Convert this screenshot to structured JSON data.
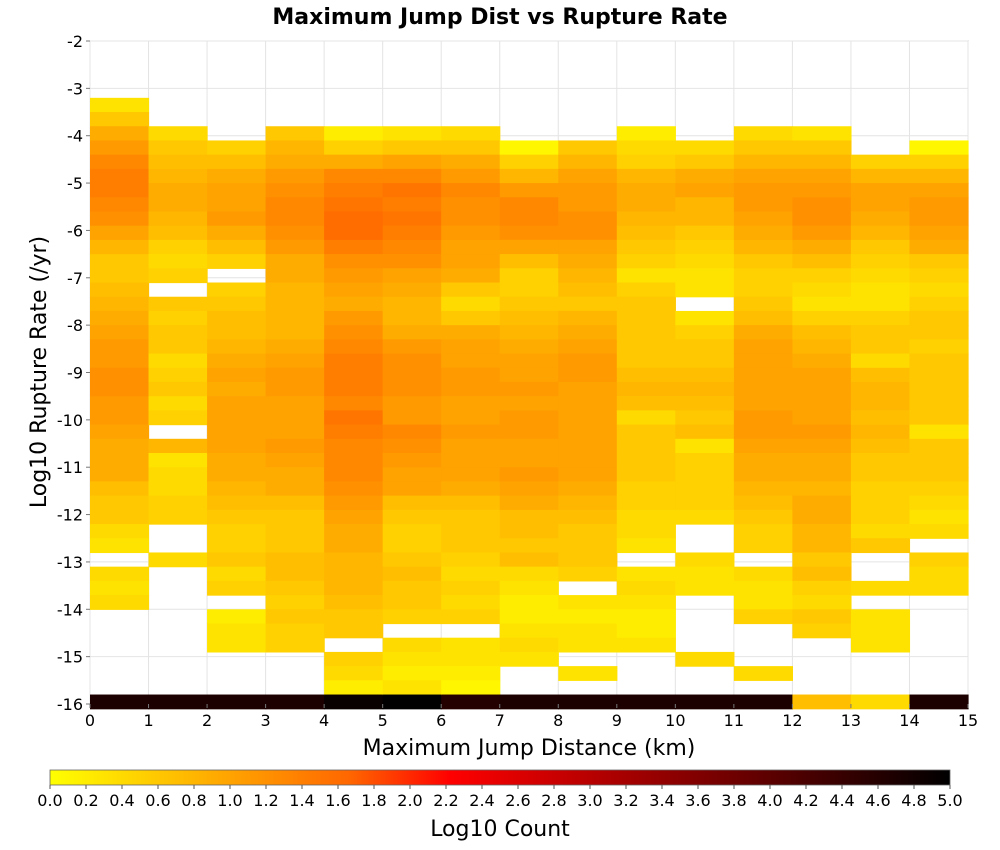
{
  "chart_data": {
    "type": "heatmap",
    "title": "Maximum Jump Dist vs Rupture Rate",
    "xlabel": "Maximum Jump Distance (km)",
    "ylabel": "Log10 Rupture Rate (/yr)",
    "colorbar_label": "Log10 Count",
    "xlim": [
      0,
      15
    ],
    "ylim": [
      -16,
      -2
    ],
    "x_ticks": [
      "0",
      "1",
      "2",
      "3",
      "4",
      "5",
      "6",
      "7",
      "8",
      "9",
      "10",
      "11",
      "12",
      "13",
      "14",
      "15"
    ],
    "y_ticks": [
      "-2",
      "-3",
      "-4",
      "-5",
      "-6",
      "-7",
      "-8",
      "-9",
      "-10",
      "-11",
      "-12",
      "-13",
      "-14",
      "-15",
      "-16"
    ],
    "colorbar_range": [
      0,
      5
    ],
    "colorbar_ticks": [
      "0.0",
      "0.2",
      "0.4",
      "0.6",
      "0.8",
      "1.0",
      "1.2",
      "1.4",
      "1.6",
      "1.8",
      "2.0",
      "2.2",
      "2.4",
      "2.6",
      "2.8",
      "3.0",
      "3.2",
      "3.4",
      "3.6",
      "3.8",
      "4.0",
      "4.2",
      "4.4",
      "4.6",
      "4.8",
      "5.0"
    ],
    "colormap": [
      "#ffff00",
      "#ffcc00",
      "#ff9900",
      "#ff6600",
      "#ff0000",
      "#cc0000",
      "#990000",
      "#660000",
      "#330000",
      "#000000"
    ],
    "grid": true,
    "x_bin_width": 1,
    "y_bin_height": 0.3,
    "row_centers": [
      -3.35,
      -3.65,
      -3.95,
      -4.25,
      -4.55,
      -4.85,
      -5.15,
      -5.45,
      -5.75,
      -6.05,
      -6.35,
      -6.65,
      -6.95,
      -7.25,
      -7.55,
      -7.85,
      -8.15,
      -8.45,
      -8.75,
      -9.05,
      -9.35,
      -9.65,
      -9.95,
      -10.25,
      -10.55,
      -10.85,
      -11.15,
      -11.45,
      -11.75,
      -12.05,
      -12.35,
      -12.65,
      -12.95,
      -13.25,
      -13.55,
      -13.85,
      -14.15,
      -14.45,
      -14.75,
      -15.05,
      -15.35,
      -15.65,
      -15.95
    ],
    "columns": [
      {
        "x": 0.5,
        "top": -3.2,
        "values": [
          0.3,
          0.6,
          0.9,
          1.1,
          1.3,
          1.4,
          1.4,
          1.3,
          1.2,
          1.0,
          0.8,
          0.6,
          0.6,
          0.7,
          0.8,
          0.9,
          1.0,
          1.1,
          1.1,
          1.2,
          1.2,
          1.1,
          1.1,
          1.0,
          0.9,
          0.9,
          0.9,
          0.7,
          0.6,
          0.6,
          0.4,
          0.3,
          null,
          0.4,
          0.3,
          0.4,
          null,
          null,
          null,
          null,
          null,
          null,
          4.7
        ]
      },
      {
        "x": 1.5,
        "top": -3.8,
        "values": [
          null,
          null,
          0.4,
          0.6,
          0.7,
          0.8,
          0.9,
          0.9,
          0.8,
          0.7,
          0.5,
          0.4,
          0.5,
          null,
          0.6,
          0.5,
          0.6,
          0.6,
          0.4,
          0.5,
          0.6,
          0.4,
          0.5,
          null,
          0.8,
          0.3,
          0.4,
          0.4,
          0.5,
          0.5,
          null,
          null,
          0.4,
          null,
          null,
          null,
          null,
          null,
          null,
          null,
          null,
          null,
          4.7
        ]
      },
      {
        "x": 2.5,
        "top": -4.1,
        "values": [
          null,
          null,
          null,
          0.5,
          0.7,
          0.9,
          1.0,
          1.0,
          1.1,
          0.9,
          0.7,
          0.5,
          null,
          0.5,
          0.6,
          0.7,
          0.7,
          0.8,
          0.9,
          1.0,
          0.9,
          1.0,
          1.0,
          1.0,
          1.0,
          0.9,
          0.9,
          0.8,
          0.7,
          0.6,
          0.5,
          0.5,
          0.6,
          0.4,
          0.5,
          null,
          0.2,
          0.3,
          0.3,
          null,
          null,
          null,
          4.7
        ]
      },
      {
        "x": 3.5,
        "top": -3.8,
        "values": [
          null,
          null,
          0.6,
          0.8,
          0.9,
          1.1,
          1.2,
          1.3,
          1.3,
          1.2,
          1.1,
          0.9,
          0.9,
          0.8,
          0.8,
          0.8,
          0.8,
          0.9,
          1.0,
          1.1,
          1.1,
          1.0,
          1.0,
          1.0,
          1.1,
          1.0,
          0.9,
          0.9,
          0.7,
          0.6,
          0.6,
          0.6,
          0.7,
          0.7,
          0.6,
          0.5,
          0.6,
          0.5,
          0.5,
          null,
          null,
          null,
          4.7
        ]
      },
      {
        "x": 4.5,
        "top": -3.8,
        "values": [
          null,
          null,
          0.2,
          0.5,
          0.9,
          1.3,
          1.4,
          1.5,
          1.6,
          1.6,
          1.4,
          1.2,
          1.1,
          1.0,
          0.9,
          1.1,
          1.2,
          1.3,
          1.4,
          1.4,
          1.4,
          1.3,
          1.5,
          1.4,
          1.3,
          1.3,
          1.3,
          1.2,
          1.1,
          1.0,
          0.9,
          0.9,
          0.8,
          0.8,
          0.8,
          0.7,
          0.6,
          0.6,
          null,
          0.5,
          0.4,
          0.2,
          4.9
        ]
      },
      {
        "x": 5.5,
        "top": -3.8,
        "values": [
          null,
          null,
          0.3,
          0.6,
          1.0,
          1.3,
          1.5,
          1.4,
          1.5,
          1.4,
          1.3,
          1.2,
          1.0,
          0.9,
          0.8,
          0.8,
          0.9,
          1.1,
          1.2,
          1.2,
          1.2,
          1.1,
          1.1,
          1.3,
          1.2,
          1.1,
          1.0,
          1.0,
          0.7,
          0.6,
          0.5,
          0.5,
          0.6,
          0.7,
          0.6,
          0.6,
          0.5,
          null,
          0.4,
          0.3,
          0.2,
          0.3,
          5.0
        ]
      },
      {
        "x": 6.5,
        "top": -3.8,
        "values": [
          null,
          null,
          0.4,
          0.6,
          0.9,
          1.1,
          1.3,
          1.2,
          1.2,
          1.1,
          1.0,
          1.0,
          0.9,
          0.6,
          0.4,
          0.6,
          0.9,
          1.0,
          1.0,
          1.1,
          1.1,
          1.0,
          1.0,
          1.1,
          1.0,
          1.0,
          1.0,
          0.9,
          0.7,
          0.6,
          0.6,
          0.6,
          0.5,
          0.4,
          0.5,
          0.4,
          0.5,
          null,
          0.3,
          0.3,
          0.2,
          0.1,
          4.6
        ]
      },
      {
        "x": 7.5,
        "top": -4.1,
        "values": [
          null,
          null,
          null,
          0.1,
          0.5,
          0.8,
          1.1,
          1.3,
          1.3,
          1.2,
          1.0,
          0.7,
          0.5,
          0.5,
          0.6,
          0.7,
          0.8,
          0.9,
          1.0,
          1.0,
          1.1,
          1.0,
          1.1,
          1.1,
          1.0,
          1.0,
          1.1,
          1.0,
          0.9,
          0.7,
          0.7,
          0.6,
          0.7,
          0.4,
          0.3,
          0.2,
          0.2,
          0.3,
          0.4,
          0.3,
          null,
          null,
          4.7
        ]
      },
      {
        "x": 8.5,
        "top": -4.1,
        "values": [
          null,
          null,
          null,
          0.6,
          0.8,
          1.0,
          1.1,
          1.1,
          1.2,
          1.2,
          1.0,
          0.9,
          0.8,
          0.7,
          0.6,
          0.8,
          0.9,
          1.0,
          1.1,
          1.1,
          1.0,
          1.0,
          1.0,
          1.0,
          1.0,
          1.0,
          1.0,
          0.9,
          0.8,
          0.7,
          0.6,
          0.6,
          0.6,
          0.5,
          null,
          0.3,
          0.2,
          0.3,
          0.3,
          null,
          0.3,
          null,
          4.7
        ]
      },
      {
        "x": 9.5,
        "top": -3.8,
        "values": [
          null,
          null,
          0.2,
          0.4,
          0.5,
          0.8,
          0.9,
          0.9,
          0.8,
          0.7,
          0.6,
          0.5,
          0.3,
          0.5,
          0.6,
          0.6,
          0.6,
          0.6,
          0.6,
          0.7,
          0.8,
          0.7,
          0.4,
          0.6,
          0.6,
          0.6,
          0.6,
          0.5,
          0.5,
          0.4,
          0.4,
          0.3,
          null,
          0.3,
          0.4,
          0.3,
          0.2,
          0.2,
          0.3,
          null,
          null,
          null,
          4.7
        ]
      },
      {
        "x": 10.5,
        "top": -4.1,
        "values": [
          null,
          null,
          null,
          0.4,
          0.6,
          0.9,
          1.0,
          0.8,
          0.8,
          0.6,
          0.5,
          0.4,
          0.3,
          0.3,
          null,
          0.3,
          0.5,
          0.6,
          0.6,
          0.7,
          0.8,
          0.7,
          0.6,
          0.7,
          0.3,
          0.5,
          0.5,
          0.5,
          0.5,
          0.4,
          null,
          null,
          0.4,
          0.3,
          0.3,
          null,
          null,
          null,
          null,
          0.4,
          null,
          null,
          4.7
        ]
      },
      {
        "x": 11.5,
        "top": -3.8,
        "values": [
          null,
          null,
          0.4,
          0.6,
          0.8,
          1.0,
          1.1,
          1.1,
          1.0,
          0.9,
          0.8,
          0.6,
          0.5,
          0.5,
          0.6,
          0.7,
          0.9,
          1.0,
          1.0,
          1.0,
          1.0,
          1.0,
          1.1,
          1.1,
          1.0,
          0.9,
          0.9,
          0.8,
          0.7,
          0.6,
          0.5,
          0.5,
          null,
          0.4,
          0.3,
          0.3,
          0.5,
          null,
          null,
          null,
          0.4,
          null,
          4.7
        ]
      },
      {
        "x": 12.5,
        "top": -3.8,
        "values": [
          null,
          null,
          0.3,
          0.6,
          0.8,
          1.0,
          1.1,
          1.2,
          1.2,
          1.1,
          0.9,
          0.7,
          0.5,
          0.4,
          0.3,
          0.5,
          0.7,
          0.8,
          0.9,
          1.0,
          1.0,
          1.0,
          1.0,
          1.1,
          1.0,
          0.9,
          0.9,
          0.8,
          0.9,
          0.9,
          0.8,
          0.8,
          0.6,
          0.7,
          0.5,
          0.4,
          0.6,
          0.5,
          null,
          null,
          null,
          null,
          0.7
        ]
      },
      {
        "x": 13.5,
        "top": -4.4,
        "values": [
          null,
          null,
          null,
          null,
          0.5,
          0.8,
          1.0,
          1.0,
          0.9,
          0.8,
          0.6,
          0.5,
          0.4,
          0.3,
          0.3,
          0.5,
          0.6,
          0.6,
          0.4,
          0.7,
          0.8,
          0.8,
          0.7,
          0.8,
          0.7,
          0.6,
          0.6,
          0.5,
          0.5,
          0.5,
          0.4,
          0.6,
          null,
          null,
          0.4,
          null,
          0.3,
          0.3,
          0.3,
          null,
          null,
          null,
          0.4
        ]
      },
      {
        "x": 14.5,
        "top": -4.1,
        "values": [
          null,
          null,
          null,
          0.1,
          0.5,
          0.8,
          1.0,
          1.1,
          1.1,
          1.0,
          0.9,
          0.6,
          0.5,
          0.4,
          0.5,
          0.6,
          0.6,
          0.5,
          0.6,
          0.6,
          0.6,
          0.6,
          0.6,
          0.3,
          0.6,
          0.6,
          0.6,
          0.5,
          0.4,
          0.3,
          0.4,
          null,
          0.5,
          0.4,
          0.4,
          null,
          null,
          null,
          null,
          null,
          null,
          null,
          4.7
        ]
      }
    ]
  }
}
